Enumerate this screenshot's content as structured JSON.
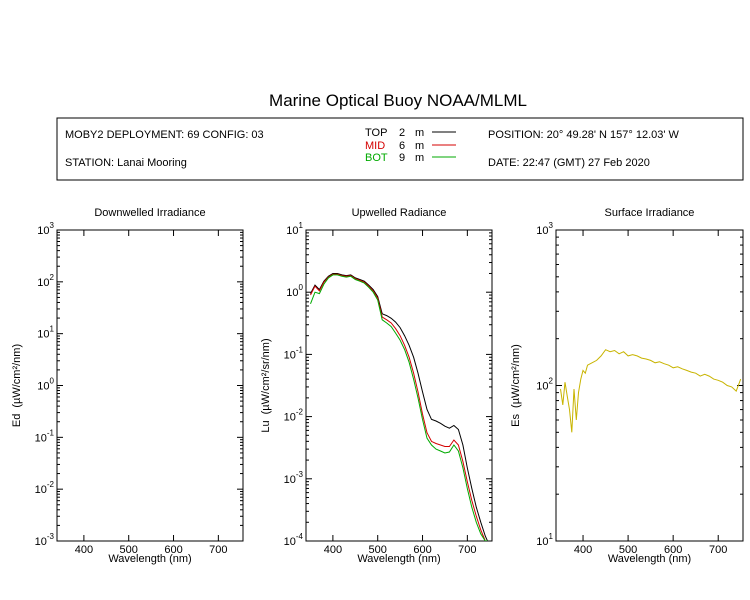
{
  "title": "Marine Optical Buoy NOAA/MLML",
  "info": {
    "deployment": "MOBY2 DEPLOYMENT: 69 CONFIG: 03",
    "station": "STATION: Lanai Mooring",
    "position": "POSITION: 20° 49.28' N   157° 12.03' W",
    "date": "DATE: 22:47 (GMT) 27 Feb 2020",
    "legend": [
      {
        "name": "TOP",
        "depth": "2",
        "unit": "m",
        "color": "#000000"
      },
      {
        "name": "MID",
        "depth": "6",
        "unit": "m",
        "color": "#d40000"
      },
      {
        "name": "BOT",
        "depth": "9",
        "unit": "m",
        "color": "#00aa00"
      }
    ]
  },
  "colors": {
    "top": "#000000",
    "mid": "#d40000",
    "bot": "#00aa00",
    "surface": "#c8b400"
  },
  "chart_data": [
    {
      "type": "line",
      "title": "Downwelled Irradiance",
      "xlabel": "Wavelength (nm)",
      "ylabel_main": "Ed",
      "ylabel_unit": "(µW/cm²/nm)",
      "yscale": "log",
      "xlim": [
        340,
        755
      ],
      "ylim": [
        0.001,
        1000
      ],
      "xticks": [
        "400",
        "500",
        "600",
        "700"
      ],
      "yticks": [
        {
          "base": "10",
          "exp": "-3"
        },
        {
          "base": "10",
          "exp": "-2"
        },
        {
          "base": "10",
          "exp": "-1"
        },
        {
          "base": "10",
          "exp": "0"
        },
        {
          "base": "10",
          "exp": "1"
        },
        {
          "base": "10",
          "exp": "2"
        },
        {
          "base": "10",
          "exp": "3"
        }
      ],
      "series": []
    },
    {
      "type": "line",
      "title": "Upwelled Radiance",
      "xlabel": "Wavelength (nm)",
      "ylabel_main": "Lu",
      "ylabel_unit": "(µW/cm²/sr/nm)",
      "yscale": "log",
      "xlim": [
        340,
        755
      ],
      "ylim": [
        0.0001,
        10
      ],
      "xticks": [
        "400",
        "500",
        "600",
        "700"
      ],
      "yticks": [
        {
          "base": "10",
          "exp": "-4"
        },
        {
          "base": "10",
          "exp": "-3"
        },
        {
          "base": "10",
          "exp": "-2"
        },
        {
          "base": "10",
          "exp": "-1"
        },
        {
          "base": "10",
          "exp": "0"
        },
        {
          "base": "10",
          "exp": "1"
        }
      ],
      "series": [
        {
          "name": "TOP",
          "color": "#000000",
          "x": [
            350,
            360,
            370,
            380,
            390,
            400,
            410,
            420,
            430,
            440,
            450,
            460,
            470,
            480,
            490,
            500,
            510,
            520,
            530,
            540,
            550,
            560,
            570,
            580,
            590,
            600,
            610,
            620,
            630,
            640,
            650,
            660,
            670,
            680,
            690,
            700,
            710,
            720,
            730,
            740,
            745
          ],
          "y": [
            0.95,
            1.3,
            1.1,
            1.5,
            1.8,
            2.0,
            2.0,
            1.9,
            1.85,
            1.9,
            1.7,
            1.6,
            1.5,
            1.3,
            1.1,
            0.85,
            0.45,
            0.42,
            0.38,
            0.33,
            0.27,
            0.2,
            0.14,
            0.09,
            0.05,
            0.025,
            0.013,
            0.009,
            0.0085,
            0.0078,
            0.007,
            0.0065,
            0.0072,
            0.0062,
            0.0035,
            0.0015,
            0.0007,
            0.00035,
            0.0002,
            0.00012,
            0.0001
          ]
        },
        {
          "name": "MID",
          "color": "#d40000",
          "x": [
            350,
            360,
            370,
            380,
            390,
            400,
            410,
            420,
            430,
            440,
            450,
            460,
            470,
            480,
            490,
            500,
            510,
            520,
            530,
            540,
            550,
            560,
            570,
            580,
            590,
            600,
            610,
            620,
            630,
            640,
            650,
            660,
            670,
            680,
            690,
            700,
            710,
            720,
            730,
            740,
            745
          ],
          "y": [
            0.9,
            1.25,
            1.05,
            1.45,
            1.75,
            1.95,
            1.95,
            1.85,
            1.8,
            1.85,
            1.65,
            1.55,
            1.45,
            1.25,
            1.05,
            0.8,
            0.4,
            0.36,
            0.32,
            0.26,
            0.2,
            0.14,
            0.09,
            0.05,
            0.025,
            0.011,
            0.0055,
            0.004,
            0.0037,
            0.0035,
            0.0033,
            0.0033,
            0.0042,
            0.0035,
            0.0019,
            0.0009,
            0.00045,
            0.00025,
            0.00015,
            0.0001,
            0.0001
          ]
        },
        {
          "name": "BOT",
          "color": "#00aa00",
          "x": [
            350,
            360,
            370,
            380,
            390,
            400,
            410,
            420,
            430,
            440,
            450,
            460,
            470,
            480,
            490,
            500,
            510,
            520,
            530,
            540,
            550,
            560,
            570,
            580,
            590,
            600,
            610,
            620,
            630,
            640,
            650,
            660,
            670,
            680,
            690,
            700,
            710,
            720,
            730,
            740,
            745
          ],
          "y": [
            0.65,
            1.0,
            0.95,
            1.35,
            1.7,
            1.9,
            1.9,
            1.8,
            1.75,
            1.8,
            1.6,
            1.5,
            1.4,
            1.2,
            1.0,
            0.75,
            0.36,
            0.32,
            0.28,
            0.22,
            0.17,
            0.12,
            0.075,
            0.04,
            0.02,
            0.009,
            0.0045,
            0.0035,
            0.003,
            0.0028,
            0.0026,
            0.0027,
            0.0035,
            0.0028,
            0.0015,
            0.0007,
            0.00035,
            0.0002,
            0.00013,
            0.0001,
            0.0001
          ]
        }
      ]
    },
    {
      "type": "line",
      "title": "Surface Irradiance",
      "xlabel": "Wavelength (nm)",
      "ylabel_main": "Es",
      "ylabel_unit": "(µW/cm²/nm)",
      "yscale": "log",
      "xlim": [
        340,
        755
      ],
      "ylim": [
        10,
        1000
      ],
      "xticks": [
        "400",
        "500",
        "600",
        "700"
      ],
      "yticks": [
        {
          "base": "10",
          "exp": "1"
        },
        {
          "base": "10",
          "exp": "2"
        },
        {
          "base": "10",
          "exp": "3"
        }
      ],
      "series": [
        {
          "name": "Es",
          "color": "#c8b400",
          "x": [
            350,
            355,
            360,
            365,
            370,
            375,
            380,
            385,
            390,
            395,
            400,
            405,
            410,
            420,
            430,
            440,
            450,
            460,
            470,
            480,
            490,
            500,
            510,
            520,
            530,
            540,
            550,
            560,
            570,
            580,
            590,
            600,
            610,
            620,
            630,
            640,
            650,
            660,
            670,
            680,
            690,
            700,
            710,
            720,
            730,
            740,
            750
          ],
          "y": [
            95,
            75,
            105,
            85,
            70,
            50,
            95,
            60,
            90,
            110,
            125,
            120,
            135,
            140,
            145,
            155,
            170,
            165,
            168,
            160,
            165,
            155,
            158,
            155,
            150,
            148,
            145,
            140,
            142,
            138,
            135,
            130,
            132,
            128,
            125,
            122,
            120,
            115,
            118,
            115,
            110,
            108,
            105,
            100,
            98,
            92,
            110
          ]
        }
      ]
    }
  ]
}
